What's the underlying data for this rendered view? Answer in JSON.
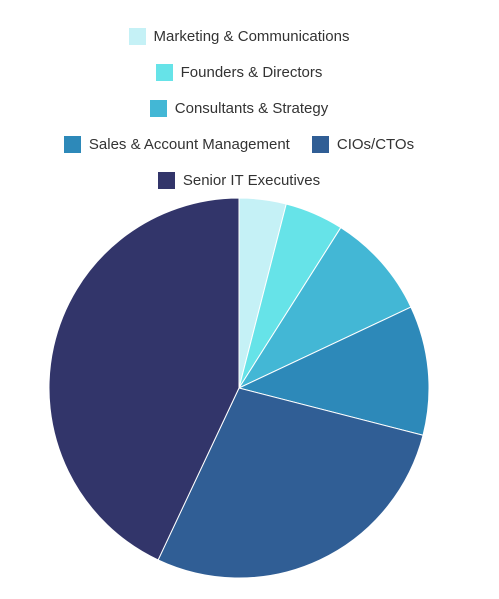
{
  "chart_data": {
    "type": "pie",
    "legend_position": "top",
    "slices": [
      {
        "name": "Marketing & Communications",
        "value": 4,
        "color": "#c5f1f6"
      },
      {
        "name": "Founders & Directors",
        "value": 5,
        "color": "#66e3e8"
      },
      {
        "name": "Consultants & Strategy",
        "value": 9,
        "color": "#43b7d5"
      },
      {
        "name": "Sales & Account Management",
        "value": 11,
        "color": "#2d89b9"
      },
      {
        "name": "CIOs/CTOs",
        "value": 28,
        "color": "#305e95"
      },
      {
        "name": "Senior IT Executives",
        "value": 43,
        "color": "#32356a"
      }
    ]
  }
}
